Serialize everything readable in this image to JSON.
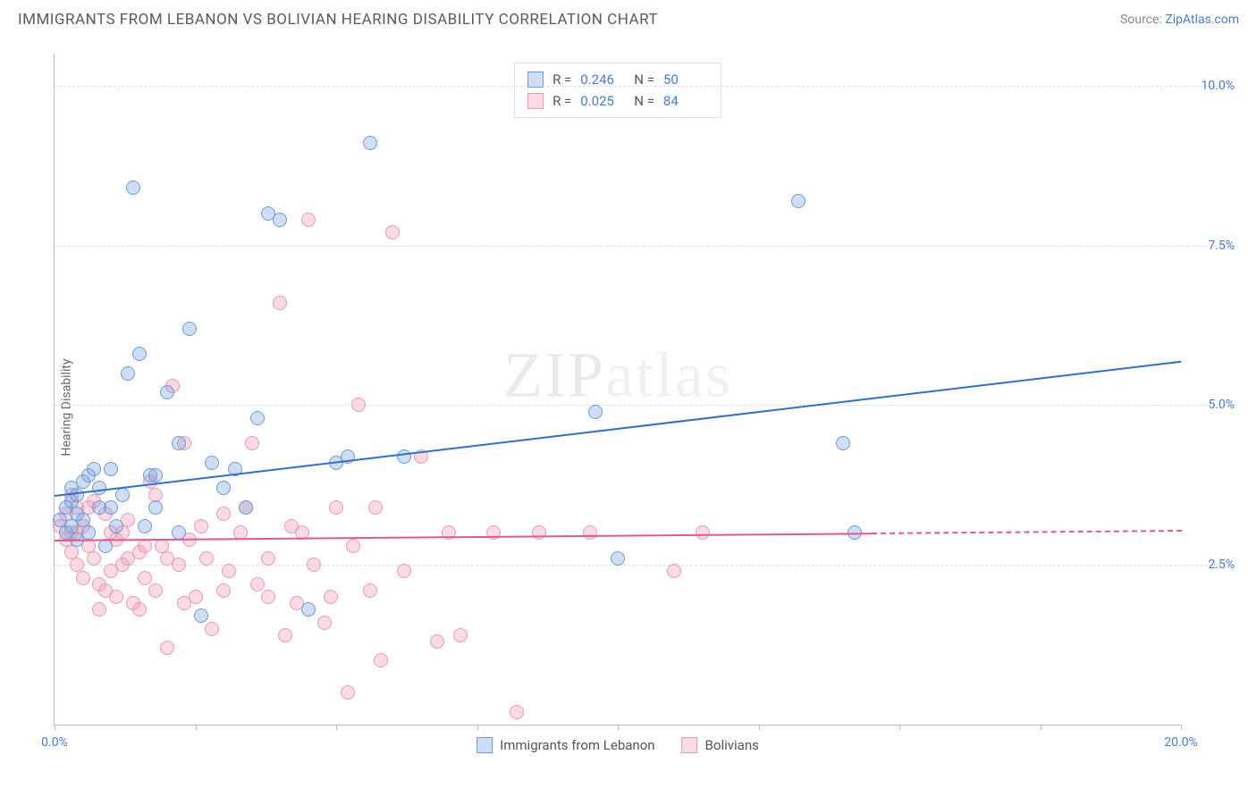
{
  "title": "IMMIGRANTS FROM LEBANON VS BOLIVIAN HEARING DISABILITY CORRELATION CHART",
  "source_prefix": "Source: ",
  "source_link": "ZipAtlas.com",
  "ylabel": "Hearing Disability",
  "watermark_a": "ZIP",
  "watermark_b": "atlas",
  "chart": {
    "type": "scatter",
    "xlim": [
      0,
      20
    ],
    "ylim": [
      0,
      10.5
    ],
    "xticks": [
      0,
      2.5,
      5,
      7.5,
      10,
      12.5,
      15,
      17.5,
      20
    ],
    "xtick_labels": {
      "0": "0.0%",
      "20": "20.0%"
    },
    "yticks": [
      2.5,
      5.0,
      7.5,
      10.0
    ],
    "ytick_labels": [
      "2.5%",
      "5.0%",
      "7.5%",
      "10.0%"
    ],
    "background": "#ffffff",
    "grid_color": "#e0e0e0",
    "axis_color": "#bbbbbb",
    "marker_radius": 8,
    "marker_border": 1.5,
    "series": [
      {
        "name": "Immigrants from Lebanon",
        "fill": "rgba(120,160,220,0.35)",
        "stroke": "#6a9bd8",
        "trend_color": "#2e6fd0",
        "trend": {
          "x1": 0,
          "y1": 3.6,
          "x2": 20,
          "y2": 5.7,
          "dash_after_x": null
        },
        "R": "0.246",
        "N": "50",
        "points": [
          [
            0.1,
            3.2
          ],
          [
            0.2,
            3.0
          ],
          [
            0.2,
            3.4
          ],
          [
            0.3,
            3.5
          ],
          [
            0.3,
            3.7
          ],
          [
            0.4,
            2.9
          ],
          [
            0.4,
            3.3
          ],
          [
            0.5,
            3.2
          ],
          [
            0.6,
            3.9
          ],
          [
            0.7,
            4.0
          ],
          [
            0.8,
            3.4
          ],
          [
            0.9,
            2.8
          ],
          [
            1.0,
            3.4
          ],
          [
            1.1,
            3.1
          ],
          [
            1.3,
            5.5
          ],
          [
            1.4,
            8.4
          ],
          [
            1.5,
            5.8
          ],
          [
            1.6,
            3.1
          ],
          [
            1.7,
            3.9
          ],
          [
            1.8,
            3.9
          ],
          [
            2.0,
            5.2
          ],
          [
            2.2,
            4.4
          ],
          [
            2.4,
            6.2
          ],
          [
            2.6,
            1.7
          ],
          [
            2.8,
            4.1
          ],
          [
            3.0,
            3.7
          ],
          [
            3.2,
            4.0
          ],
          [
            3.4,
            3.4
          ],
          [
            3.6,
            4.8
          ],
          [
            3.8,
            8.0
          ],
          [
            4.0,
            7.9
          ],
          [
            4.5,
            1.8
          ],
          [
            5.0,
            4.1
          ],
          [
            5.2,
            4.2
          ],
          [
            5.6,
            9.1
          ],
          [
            6.2,
            4.2
          ],
          [
            9.6,
            4.9
          ],
          [
            10.0,
            2.6
          ],
          [
            13.2,
            8.2
          ],
          [
            14.0,
            4.4
          ],
          [
            14.2,
            3.0
          ],
          [
            0.3,
            3.1
          ],
          [
            0.4,
            3.6
          ],
          [
            0.6,
            3.0
          ],
          [
            0.8,
            3.7
          ],
          [
            1.0,
            4.0
          ],
          [
            1.2,
            3.6
          ],
          [
            1.8,
            3.4
          ],
          [
            2.2,
            3.0
          ],
          [
            0.5,
            3.8
          ]
        ]
      },
      {
        "name": "Bolivians",
        "fill": "rgba(240,150,180,0.35)",
        "stroke": "#e89ab5",
        "trend_color": "#e05a8a",
        "trend": {
          "x1": 0,
          "y1": 2.9,
          "x2": 20,
          "y2": 3.05,
          "dash_after_x": 14.5
        },
        "R": "0.025",
        "N": "84",
        "points": [
          [
            0.1,
            3.1
          ],
          [
            0.2,
            2.9
          ],
          [
            0.2,
            3.3
          ],
          [
            0.3,
            3.0
          ],
          [
            0.3,
            2.7
          ],
          [
            0.4,
            3.4
          ],
          [
            0.4,
            2.5
          ],
          [
            0.5,
            3.1
          ],
          [
            0.5,
            2.3
          ],
          [
            0.6,
            2.8
          ],
          [
            0.7,
            2.6
          ],
          [
            0.7,
            3.5
          ],
          [
            0.8,
            2.2
          ],
          [
            0.9,
            3.3
          ],
          [
            1.0,
            2.4
          ],
          [
            1.0,
            3.0
          ],
          [
            1.1,
            2.9
          ],
          [
            1.2,
            2.5
          ],
          [
            1.3,
            3.2
          ],
          [
            1.4,
            1.9
          ],
          [
            1.5,
            2.7
          ],
          [
            1.6,
            2.3
          ],
          [
            1.7,
            3.8
          ],
          [
            1.8,
            2.1
          ],
          [
            1.9,
            2.8
          ],
          [
            2.0,
            1.2
          ],
          [
            2.1,
            5.3
          ],
          [
            2.2,
            2.5
          ],
          [
            2.3,
            4.4
          ],
          [
            2.4,
            2.9
          ],
          [
            2.5,
            2.0
          ],
          [
            2.6,
            3.1
          ],
          [
            2.8,
            1.5
          ],
          [
            3.0,
            3.3
          ],
          [
            3.1,
            2.4
          ],
          [
            3.3,
            3.0
          ],
          [
            3.5,
            4.4
          ],
          [
            3.6,
            2.2
          ],
          [
            3.8,
            2.0
          ],
          [
            4.0,
            6.6
          ],
          [
            4.2,
            3.1
          ],
          [
            4.3,
            1.9
          ],
          [
            4.5,
            7.9
          ],
          [
            4.6,
            2.5
          ],
          [
            4.8,
            1.6
          ],
          [
            5.0,
            3.4
          ],
          [
            5.2,
            0.5
          ],
          [
            5.4,
            5.0
          ],
          [
            5.6,
            2.1
          ],
          [
            5.8,
            1.0
          ],
          [
            6.0,
            7.7
          ],
          [
            6.2,
            2.4
          ],
          [
            6.5,
            4.2
          ],
          [
            6.8,
            1.3
          ],
          [
            7.0,
            3.0
          ],
          [
            7.2,
            1.4
          ],
          [
            7.8,
            3.0
          ],
          [
            8.2,
            0.2
          ],
          [
            8.6,
            3.0
          ],
          [
            9.5,
            3.0
          ],
          [
            11.0,
            2.4
          ],
          [
            11.5,
            3.0
          ],
          [
            0.3,
            3.6
          ],
          [
            0.6,
            3.4
          ],
          [
            0.9,
            2.1
          ],
          [
            1.1,
            2.0
          ],
          [
            1.3,
            2.6
          ],
          [
            1.5,
            1.8
          ],
          [
            1.8,
            3.6
          ],
          [
            2.0,
            2.6
          ],
          [
            2.3,
            1.9
          ],
          [
            2.7,
            2.6
          ],
          [
            3.0,
            2.1
          ],
          [
            3.4,
            3.4
          ],
          [
            3.8,
            2.6
          ],
          [
            4.1,
            1.4
          ],
          [
            4.4,
            3.0
          ],
          [
            4.9,
            2.0
          ],
          [
            5.3,
            2.8
          ],
          [
            5.7,
            3.4
          ],
          [
            0.4,
            3.0
          ],
          [
            0.8,
            1.8
          ],
          [
            1.2,
            3.0
          ],
          [
            1.6,
            2.8
          ]
        ]
      }
    ]
  }
}
